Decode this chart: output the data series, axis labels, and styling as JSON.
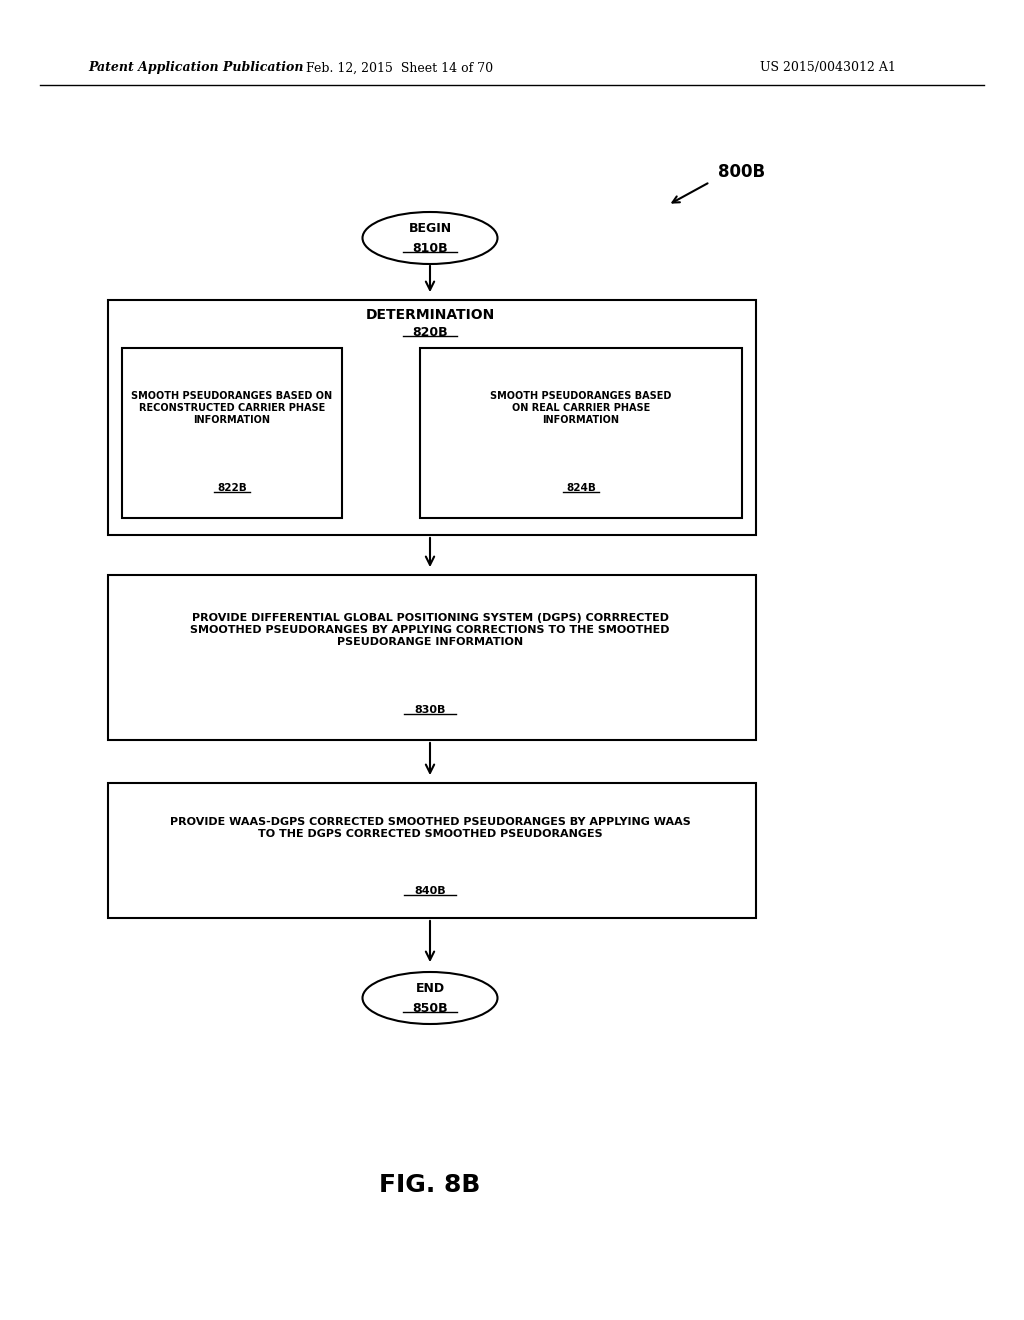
{
  "header_left": "Patent Application Publication",
  "header_mid": "Feb. 12, 2015  Sheet 14 of 70",
  "header_right": "US 2015/0043012 A1",
  "fig_label": "FIG. 8B",
  "label_800B": "800B",
  "begin_label": "BEGIN",
  "begin_id": "810B",
  "determination_label": "DETERMINATION",
  "determination_id": "820B",
  "box822_text": "SMOOTH PSEUDORANGES BASED ON\nRECONSTRUCTED CARRIER PHASE\nINFORMATION",
  "box822_id": "822B",
  "box824_text": "SMOOTH PSEUDORANGES BASED\nON REAL CARRIER PHASE\nINFORMATION",
  "box824_id": "824B",
  "box830_text": "PROVIDE DIFFERENTIAL GLOBAL POSITIONING SYSTEM (DGPS) CORRRECTED\nSMOOTHED PSEUDORANGES BY APPLYING CORRECTIONS TO THE SMOOTHED\nPSEUDORANGE INFORMATION",
  "box830_id": "830B",
  "box840_text": "PROVIDE WAAS-DGPS CORRECTED SMOOTHED PSEUDORANGES BY APPLYING WAAS\nTO THE DGPS CORRECTED SMOOTHED PSEUDORANGES",
  "box840_id": "840B",
  "end_label": "END",
  "end_id": "850B",
  "bg_color": "#ffffff",
  "box_edge_color": "#000000",
  "text_color": "#000000",
  "arrow_color": "#000000"
}
